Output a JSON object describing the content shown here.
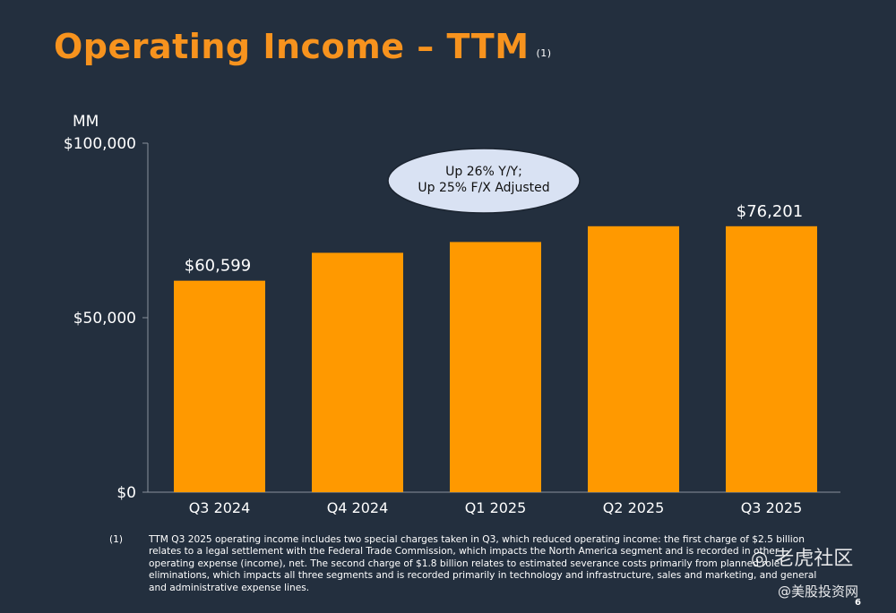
{
  "title": "Operating Income – TTM",
  "title_note": "(1)",
  "chart_data": {
    "type": "bar",
    "categories": [
      "Q3 2024",
      "Q4 2024",
      "Q1 2025",
      "Q2 2025",
      "Q3 2025"
    ],
    "values": [
      60599,
      68593,
      71687,
      76201,
      76201
    ],
    "data_labels": {
      "Q3 2024": "$60,599",
      "Q3 2025": "$76,201"
    },
    "y_unit": "MM",
    "y_ticks": [
      "$0",
      "$50,000",
      "$100,000"
    ],
    "y_tick_values": [
      0,
      50000,
      100000
    ],
    "ylim": [
      0,
      100000
    ],
    "bar_color": "#ff9900",
    "annotation": [
      "Up 26% Y/Y;",
      "Up 25% F/X Adjusted"
    ]
  },
  "footnote": {
    "number": "(1)",
    "text": "TTM Q3 2025 operating income includes two special charges taken in Q3, which reduced operating income: the first charge of $2.5 billion relates to a legal settlement with the Federal Trade Commission, which impacts the North America segment and is recorded in other operating expense (income), net. The second charge of $1.8 billion relates to estimated severance costs primarily from planned role eliminations, which impacts all three segments and is recorded primarily in technology and infrastructure, sales and marketing, and general and administrative expense lines."
  },
  "watermark": "老虎社区",
  "watermark_sub": "@美股投资网",
  "page_number": "6"
}
